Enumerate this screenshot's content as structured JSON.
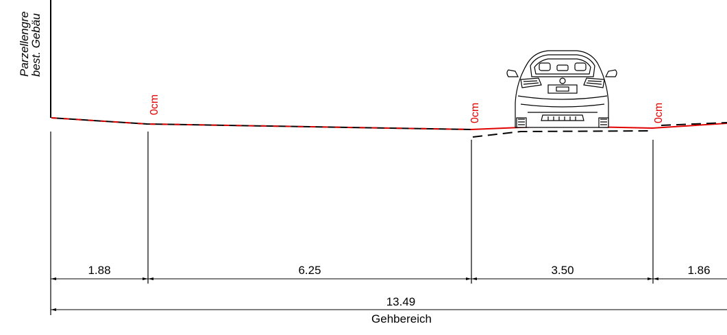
{
  "labels": {
    "vertical_line1": "Parzellengre",
    "vertical_line2": "best. Gebäu",
    "level_a": "0cm",
    "level_b": "0cm",
    "level_c": "0cm"
  },
  "dimensions": {
    "seg1": "1.88",
    "seg2": "6.25",
    "seg3": "3.50",
    "seg4": "1.86",
    "total": "13.49",
    "zone": "Gehbereich"
  },
  "colors": {
    "line": "#000000",
    "profile_red": "#e00000",
    "background": "#ffffff"
  }
}
